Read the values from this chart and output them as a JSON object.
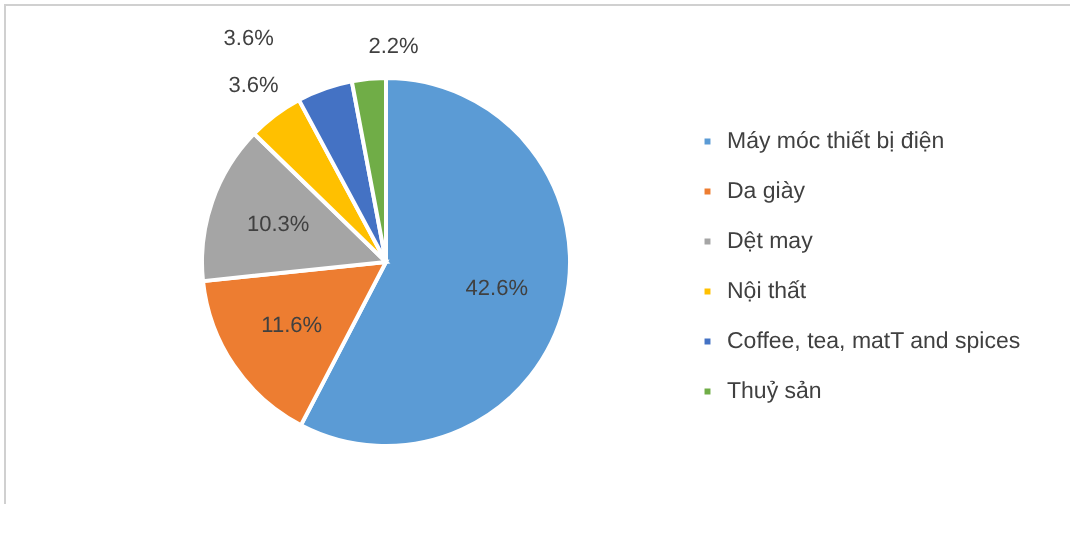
{
  "chart_data": {
    "type": "pie",
    "categories": [
      "Máy móc thiết bị điện",
      "Da giày",
      "Dệt may",
      "Nội thất",
      "Coffee, tea, matT and spices",
      "Thuỷ sản"
    ],
    "values": [
      42.6,
      11.6,
      10.3,
      3.6,
      3.6,
      2.2
    ],
    "value_labels": [
      "42.6%",
      "11.6%",
      "10.3%",
      "3.6%",
      "3.6%",
      "2.2%"
    ],
    "colors": [
      "#5b9bd5",
      "#ed7d31",
      "#a5a5a5",
      "#ffc000",
      "#4472c4",
      "#70ad47"
    ],
    "legend": "right"
  }
}
